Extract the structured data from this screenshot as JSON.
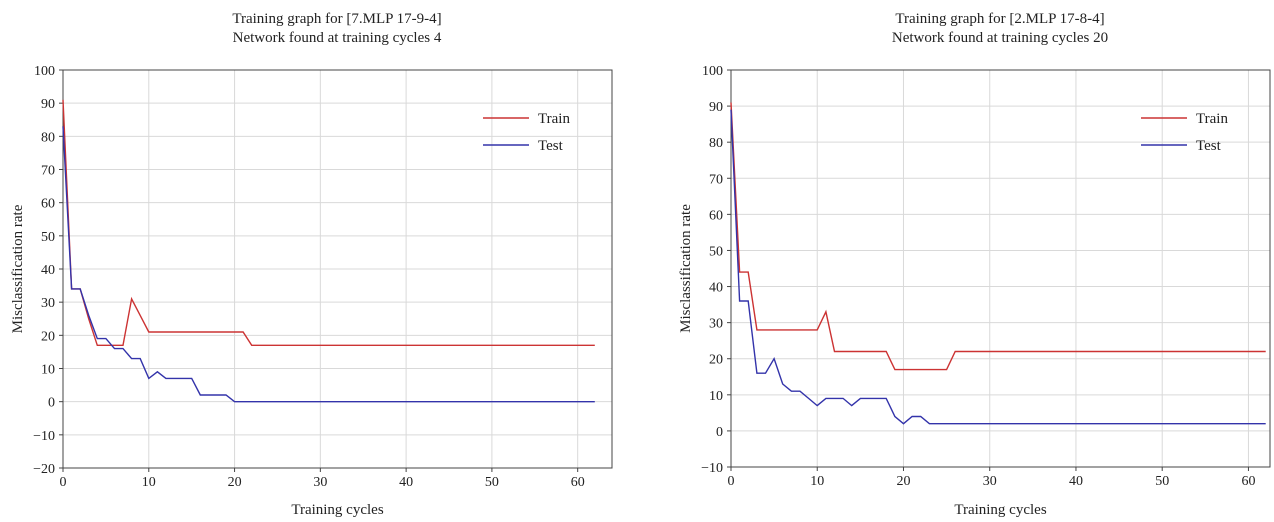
{
  "chart_data": [
    {
      "type": "line",
      "title": "Training graph for [7.MLP 17-9-4]",
      "subtitle": "Network found at training cycles 4",
      "xlabel": "Training cycles",
      "ylabel": "Misclassification rate",
      "xlim": [
        0,
        64
      ],
      "ylim": [
        -20,
        100
      ],
      "xticks": [
        0,
        10,
        20,
        30,
        40,
        50,
        60
      ],
      "yticks": [
        -20,
        -10,
        0,
        10,
        20,
        30,
        40,
        50,
        60,
        70,
        80,
        90,
        100
      ],
      "grid": true,
      "legend_position": "top-right",
      "series": [
        {
          "name": "Train",
          "color": "#cc3333",
          "x": [
            0,
            1,
            2,
            3,
            4,
            5,
            6,
            7,
            8,
            9,
            10,
            11,
            12,
            13,
            14,
            15,
            16,
            17,
            18,
            19,
            20,
            21,
            22,
            62
          ],
          "y": [
            91,
            34,
            34,
            25,
            17,
            17,
            17,
            17,
            31,
            26,
            21,
            21,
            21,
            21,
            21,
            21,
            21,
            21,
            21,
            21,
            21,
            21,
            17,
            17
          ]
        },
        {
          "name": "Test",
          "color": "#3333aa",
          "x": [
            0,
            1,
            2,
            3,
            4,
            5,
            6,
            7,
            8,
            9,
            10,
            11,
            12,
            13,
            14,
            15,
            16,
            17,
            18,
            19,
            20,
            62
          ],
          "y": [
            83,
            34,
            34,
            26,
            19,
            19,
            16,
            16,
            13,
            13,
            7,
            9,
            7,
            7,
            7,
            7,
            2,
            2,
            2,
            2,
            0,
            0
          ]
        }
      ]
    },
    {
      "type": "line",
      "title": "Training graph for [2.MLP 17-8-4]",
      "subtitle": "Network found at training cycles 20",
      "xlabel": "Training cycles",
      "ylabel": "Misclassification rate",
      "xlim": [
        0,
        62.5
      ],
      "ylim": [
        -10,
        100
      ],
      "xticks": [
        0,
        10,
        20,
        30,
        40,
        50,
        60
      ],
      "yticks": [
        -10,
        0,
        10,
        20,
        30,
        40,
        50,
        60,
        70,
        80,
        90,
        100
      ],
      "grid": true,
      "legend_position": "top-right",
      "series": [
        {
          "name": "Train",
          "color": "#cc3333",
          "x": [
            0,
            1,
            2,
            3,
            4,
            5,
            6,
            7,
            8,
            9,
            10,
            11,
            12,
            13,
            14,
            15,
            16,
            17,
            18,
            19,
            20,
            21,
            22,
            23,
            24,
            25,
            26,
            62
          ],
          "y": [
            91,
            44,
            44,
            28,
            28,
            28,
            28,
            28,
            28,
            28,
            28,
            33,
            22,
            22,
            22,
            22,
            22,
            22,
            22,
            17,
            17,
            17,
            17,
            17,
            17,
            17,
            22,
            22
          ]
        },
        {
          "name": "Test",
          "color": "#3333aa",
          "x": [
            0,
            1,
            2,
            3,
            4,
            5,
            6,
            7,
            8,
            9,
            10,
            11,
            12,
            13,
            14,
            15,
            16,
            17,
            18,
            19,
            20,
            21,
            22,
            23,
            62
          ],
          "y": [
            89,
            36,
            36,
            16,
            16,
            20,
            13,
            11,
            11,
            9,
            7,
            9,
            9,
            9,
            7,
            9,
            9,
            9,
            9,
            4,
            2,
            4,
            4,
            2,
            2
          ]
        }
      ]
    }
  ]
}
